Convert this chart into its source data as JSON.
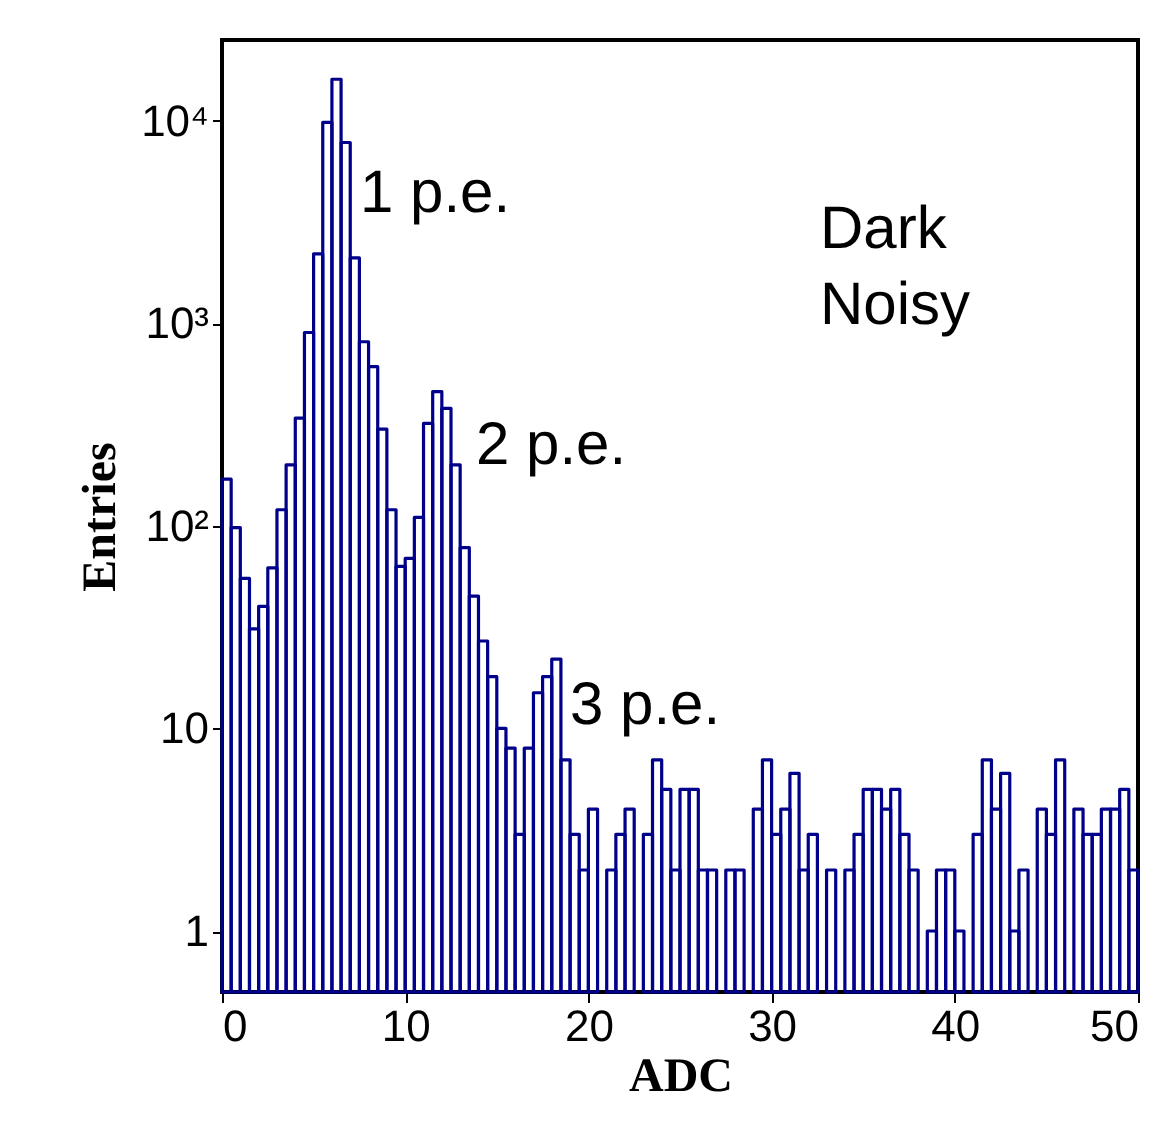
{
  "chart_data": {
    "type": "histogram",
    "xlabel": "ADC",
    "ylabel": "Entries",
    "bins": [
      0,
      0.5,
      1,
      1.5,
      2,
      2.5,
      3,
      3.5,
      4,
      4.5,
      5,
      5.5,
      6,
      6.5,
      7,
      7.5,
      8,
      8.5,
      9,
      9.5,
      10,
      10.5,
      11,
      11.5,
      12,
      12.5,
      13,
      13.5,
      14,
      14.5,
      15,
      15.5,
      16,
      16.5,
      17,
      17.5,
      18,
      18.5,
      19,
      19.5,
      20,
      20.5,
      21,
      21.5,
      22,
      22.5,
      23,
      23.5,
      24,
      24.5,
      25,
      25.5,
      26,
      26.5,
      27,
      27.5,
      28,
      28.5,
      29,
      29.5,
      30,
      30.5,
      31,
      31.5,
      32,
      32.5,
      33,
      33.5,
      34,
      34.5,
      35,
      35.5,
      36,
      36.5,
      37,
      37.5,
      38,
      38.5,
      39,
      39.5,
      40,
      40.5,
      41,
      41.5,
      42,
      42.5,
      43,
      43.5,
      44,
      44.5,
      45,
      45.5,
      46,
      46.5,
      47,
      47.5,
      48,
      48.5,
      49,
      49.5,
      50
    ],
    "values": [
      170,
      98,
      55,
      31,
      40,
      62,
      120,
      200,
      340,
      900,
      2200,
      9800,
      16000,
      7800,
      2100,
      810,
      610,
      300,
      120,
      63,
      69,
      110,
      320,
      460,
      380,
      200,
      78,
      45,
      27,
      18,
      10,
      8,
      3,
      8,
      15,
      18,
      22,
      7,
      3,
      2,
      4,
      null,
      2,
      3,
      4,
      null,
      3,
      7,
      5,
      2,
      5,
      5,
      2,
      2,
      null,
      2,
      2,
      null,
      4,
      7,
      3,
      4,
      6,
      2,
      3,
      null,
      2,
      null,
      2,
      3,
      5,
      5,
      4,
      5,
      3,
      2,
      null,
      1,
      2,
      2,
      1,
      null,
      3,
      7,
      4,
      6,
      1,
      2,
      null,
      4,
      3,
      7,
      null,
      4,
      3,
      3,
      4,
      4,
      5,
      2
    ],
    "color": "#00008b",
    "xlim": [
      0,
      50
    ],
    "xticks": [
      0,
      10,
      20,
      30,
      40,
      50
    ],
    "ylim": [
      0.5,
      25000
    ],
    "yticks": [
      1,
      10,
      {
        "value": 100,
        "label": "10²"
      },
      {
        "value": 1000,
        "label": "10³"
      },
      {
        "value": 10000,
        "label": "10⁴"
      }
    ],
    "log": "y",
    "annotations": [
      "1 p.e.",
      "2 p.e.",
      "3 p.e.",
      "Dark\nNoisy"
    ]
  }
}
